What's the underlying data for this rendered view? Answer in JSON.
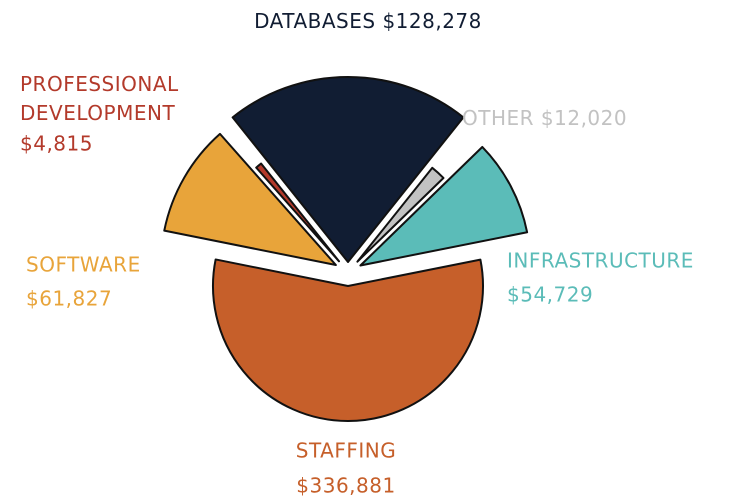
{
  "chart_data": {
    "type": "pie",
    "categories": [
      "DATABASES",
      "OTHER",
      "INFRASTRUCTURE",
      "STAFFING",
      "SOFTWARE",
      "PROFESSIONAL DEVELOPMENT"
    ],
    "values": [
      128278,
      12020,
      54729,
      336881,
      61827,
      4815
    ],
    "value_labels": [
      "$128,278",
      "$12,020",
      "$54,729",
      "$336,881",
      "$61,827",
      "$4,815"
    ],
    "colors": [
      "#111d33",
      "#c2c2c2",
      "#5bbcb8",
      "#c65f2a",
      "#e8a43a",
      "#b33a2b"
    ]
  }
}
